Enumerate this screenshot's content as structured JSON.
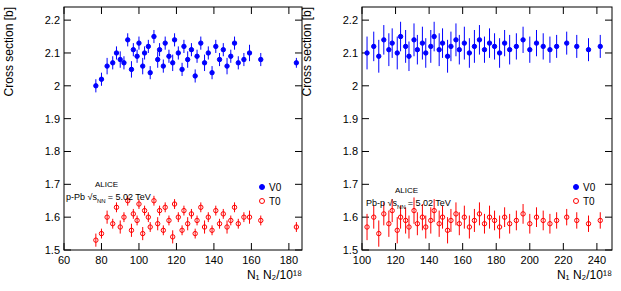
{
  "chart_data": [
    {
      "type": "scatter",
      "x_label": "N₁ N₂/10¹⁸",
      "y_label": "Cross section [b]",
      "annotations": [
        "ALICE",
        "p-Pb √s",
        "NN",
        "= 5.02 TeV"
      ],
      "xlim": [
        60,
        187
      ],
      "xticks": [
        60,
        80,
        100,
        120,
        140,
        160,
        180
      ],
      "ylim": [
        1.5,
        2.24
      ],
      "yticks": [
        1.5,
        1.6,
        1.7,
        1.8,
        1.9,
        2,
        2.1,
        2.2
      ],
      "grid": false,
      "legend": "right",
      "x": [
        77,
        80,
        83,
        86,
        88,
        90,
        92,
        94,
        96,
        97,
        99,
        100,
        102,
        103,
        105,
        106,
        108,
        110,
        111,
        113,
        114,
        116,
        118,
        119,
        121,
        123,
        124,
        126,
        128,
        130,
        131,
        133,
        135,
        137,
        139,
        141,
        143,
        145,
        147,
        149,
        151,
        153,
        156,
        159,
        165,
        184
      ],
      "series": [
        {
          "name": "V0",
          "color": "#0000ff",
          "marker": "circle",
          "values": [
            2.0,
            2.02,
            2.06,
            2.07,
            2.1,
            2.08,
            2.07,
            2.14,
            2.05,
            2.11,
            2.09,
            2.13,
            2.06,
            2.1,
            2.12,
            2.04,
            2.15,
            2.08,
            2.11,
            2.06,
            2.13,
            2.09,
            2.07,
            2.14,
            2.1,
            2.05,
            2.12,
            2.08,
            2.11,
            2.03,
            2.09,
            2.13,
            2.07,
            2.1,
            2.04,
            2.12,
            2.08,
            2.11,
            2.06,
            2.09,
            2.13,
            2.07,
            2.08,
            2.1,
            2.08,
            2.07
          ],
          "errors": [
            0.02,
            0.02,
            0.025,
            0.02,
            0.02,
            0.025,
            0.02,
            0.02,
            0.025,
            0.02,
            0.02,
            0.02,
            0.025,
            0.02,
            0.02,
            0.02,
            0.02,
            0.025,
            0.02,
            0.02,
            0.02,
            0.02,
            0.025,
            0.02,
            0.02,
            0.02,
            0.02,
            0.025,
            0.02,
            0.02,
            0.02,
            0.02,
            0.025,
            0.02,
            0.02,
            0.02,
            0.02,
            0.02,
            0.025,
            0.02,
            0.02,
            0.02,
            0.02,
            0.025,
            0.02,
            0.015
          ]
        },
        {
          "name": "T0",
          "color": "#ff0000",
          "marker": "open-circle",
          "values": [
            1.53,
            1.55,
            1.6,
            1.58,
            1.63,
            1.57,
            1.6,
            1.65,
            1.56,
            1.61,
            1.59,
            1.64,
            1.55,
            1.62,
            1.6,
            1.57,
            1.65,
            1.58,
            1.62,
            1.56,
            1.63,
            1.59,
            1.54,
            1.64,
            1.6,
            1.56,
            1.62,
            1.58,
            1.61,
            1.55,
            1.59,
            1.63,
            1.57,
            1.6,
            1.56,
            1.62,
            1.58,
            1.61,
            1.57,
            1.59,
            1.63,
            1.58,
            1.6,
            1.6,
            1.59,
            1.57
          ],
          "errors": [
            0.02,
            0.015,
            0.02,
            0.015,
            0.015,
            0.02,
            0.015,
            0.015,
            0.02,
            0.015,
            0.015,
            0.015,
            0.02,
            0.015,
            0.015,
            0.015,
            0.015,
            0.02,
            0.015,
            0.015,
            0.015,
            0.015,
            0.02,
            0.015,
            0.015,
            0.015,
            0.015,
            0.02,
            0.015,
            0.015,
            0.015,
            0.015,
            0.02,
            0.015,
            0.015,
            0.015,
            0.015,
            0.015,
            0.02,
            0.015,
            0.015,
            0.015,
            0.015,
            0.02,
            0.015,
            0.015
          ]
        }
      ]
    },
    {
      "type": "scatter",
      "x_label": "N₁ N₂/10¹⁸",
      "y_label": "Cross section [b]",
      "annotations": [
        "ALICE",
        "Pb-p √s",
        "NN",
        "= 5.02 TeV"
      ],
      "xlim": [
        100,
        249
      ],
      "xticks": [
        100,
        120,
        140,
        160,
        180,
        200,
        220,
        240
      ],
      "ylim": [
        1.5,
        2.24
      ],
      "yticks": [
        1.5,
        1.6,
        1.7,
        1.8,
        1.9,
        2,
        2.1,
        2.2
      ],
      "grid": false,
      "legend": "right",
      "x": [
        103,
        107,
        110,
        113,
        116,
        118,
        121,
        123,
        126,
        128,
        131,
        133,
        136,
        138,
        141,
        143,
        146,
        148,
        151,
        153,
        156,
        158,
        161,
        164,
        167,
        170,
        173,
        176,
        179,
        182,
        185,
        188,
        192,
        196,
        200,
        204,
        208,
        212,
        216,
        222,
        228,
        235,
        242
      ],
      "series": [
        {
          "name": "V0",
          "color": "#0000ff",
          "marker": "circle",
          "values": [
            2.1,
            2.12,
            2.09,
            2.14,
            2.11,
            2.13,
            2.1,
            2.15,
            2.12,
            2.09,
            2.14,
            2.11,
            2.13,
            2.1,
            2.12,
            2.15,
            2.11,
            2.13,
            2.09,
            2.12,
            2.14,
            2.11,
            2.13,
            2.1,
            2.12,
            2.14,
            2.11,
            2.13,
            2.12,
            2.1,
            2.13,
            2.11,
            2.12,
            2.14,
            2.11,
            2.13,
            2.12,
            2.11,
            2.12,
            2.13,
            2.12,
            2.11,
            2.12
          ],
          "errors": [
            0.05,
            0.045,
            0.05,
            0.045,
            0.05,
            0.045,
            0.05,
            0.045,
            0.05,
            0.045,
            0.05,
            0.045,
            0.05,
            0.045,
            0.05,
            0.045,
            0.05,
            0.045,
            0.05,
            0.045,
            0.05,
            0.045,
            0.05,
            0.045,
            0.05,
            0.045,
            0.04,
            0.045,
            0.04,
            0.045,
            0.04,
            0.045,
            0.04,
            0.04,
            0.04,
            0.04,
            0.04,
            0.04,
            0.035,
            0.035,
            0.035,
            0.035,
            0.035
          ]
        },
        {
          "name": "T0",
          "color": "#ff0000",
          "marker": "open-circle",
          "values": [
            1.57,
            1.6,
            1.55,
            1.61,
            1.58,
            1.62,
            1.56,
            1.6,
            1.59,
            1.57,
            1.62,
            1.58,
            1.6,
            1.57,
            1.59,
            1.62,
            1.58,
            1.6,
            1.56,
            1.59,
            1.61,
            1.58,
            1.6,
            1.57,
            1.59,
            1.61,
            1.58,
            1.6,
            1.59,
            1.57,
            1.6,
            1.58,
            1.59,
            1.61,
            1.58,
            1.6,
            1.59,
            1.58,
            1.59,
            1.6,
            1.59,
            1.58,
            1.59
          ],
          "errors": [
            0.04,
            0.035,
            0.04,
            0.035,
            0.04,
            0.035,
            0.04,
            0.035,
            0.04,
            0.035,
            0.04,
            0.035,
            0.04,
            0.035,
            0.04,
            0.035,
            0.04,
            0.035,
            0.04,
            0.035,
            0.035,
            0.035,
            0.035,
            0.035,
            0.035,
            0.035,
            0.03,
            0.035,
            0.03,
            0.035,
            0.03,
            0.03,
            0.03,
            0.03,
            0.03,
            0.03,
            0.03,
            0.03,
            0.025,
            0.025,
            0.025,
            0.025,
            0.025
          ]
        }
      ]
    }
  ]
}
